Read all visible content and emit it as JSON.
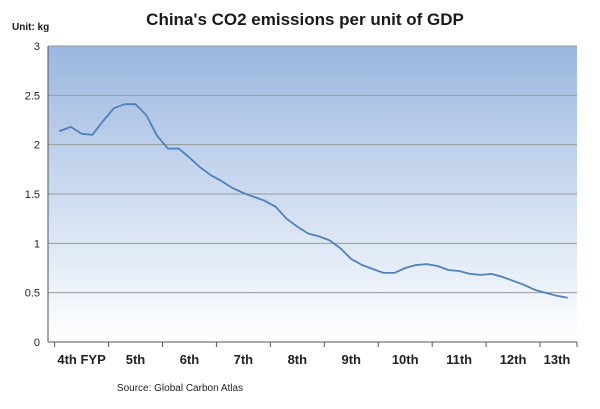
{
  "chart_data": {
    "type": "line",
    "title": "China's CO2 emissions per unit of GDP",
    "unit_label": "Unit: kg",
    "source": "Source: Global Carbon Atlas",
    "ylim": [
      0,
      3
    ],
    "yticks": [
      0,
      0.5,
      1,
      1.5,
      2,
      2.5,
      3
    ],
    "grid": true,
    "categories": [
      "4th FYP",
      "5th",
      "6th",
      "7th",
      "8th",
      "9th",
      "10th",
      "11th",
      "12th",
      "13th"
    ],
    "x": [
      1971,
      1972,
      1973,
      1974,
      1975,
      1976,
      1977,
      1978,
      1979,
      1980,
      1981,
      1982,
      1983,
      1984,
      1985,
      1986,
      1987,
      1988,
      1989,
      1990,
      1991,
      1992,
      1993,
      1994,
      1995,
      1996,
      1997,
      1998,
      1999,
      2000,
      2001,
      2002,
      2003,
      2004,
      2005,
      2006,
      2007,
      2008,
      2009,
      2010,
      2011,
      2012,
      2013,
      2014,
      2015,
      2016,
      2017,
      2018
    ],
    "series": [
      {
        "values": [
          2.14,
          2.18,
          2.11,
          2.1,
          2.24,
          2.37,
          2.41,
          2.41,
          2.3,
          2.09,
          1.96,
          1.96,
          1.87,
          1.77,
          1.69,
          1.63,
          1.56,
          1.51,
          1.47,
          1.43,
          1.37,
          1.25,
          1.17,
          1.1,
          1.07,
          1.03,
          0.95,
          0.84,
          0.78,
          0.74,
          0.7,
          0.7,
          0.75,
          0.78,
          0.79,
          0.77,
          0.73,
          0.72,
          0.69,
          0.68,
          0.69,
          0.66,
          0.62,
          0.58,
          0.53,
          0.5,
          0.47,
          0.45
        ],
        "color": "#4f81bd"
      }
    ]
  },
  "colors": {
    "plot_top": "#9bb7e0",
    "plot_bottom": "#ffffff",
    "line": "#4f81bd"
  }
}
